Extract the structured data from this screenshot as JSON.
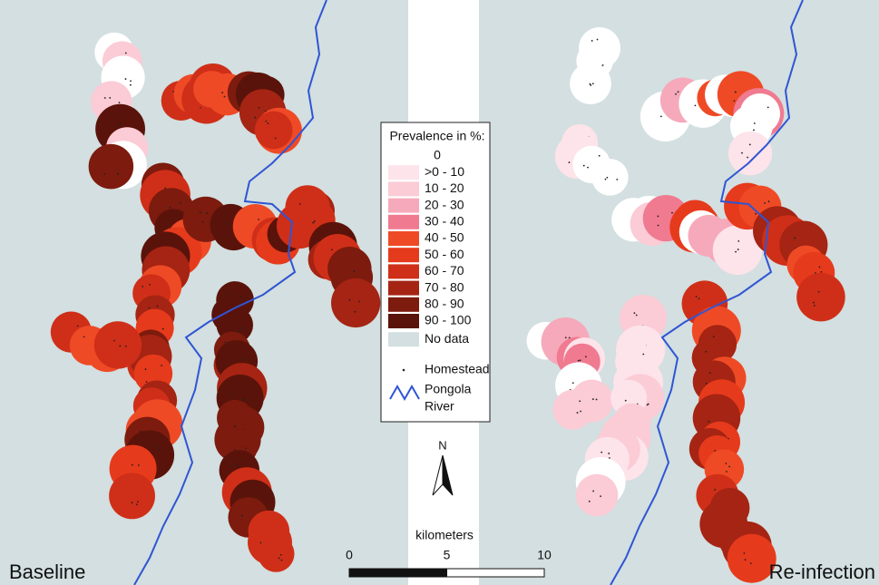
{
  "panels": {
    "left": "Baseline",
    "right": "Re-infection"
  },
  "legend": {
    "title": "Prevalence in %:",
    "items": [
      {
        "label": "0",
        "color": "#ffffff"
      },
      {
        "label": ">0 - 10",
        "color": "#fde3ea"
      },
      {
        "label": "10 - 20",
        "color": "#fbcbd6"
      },
      {
        "label": "20 - 30",
        "color": "#f6a9ba"
      },
      {
        "label": "30 - 40",
        "color": "#f07a90"
      },
      {
        "label": "40 - 50",
        "color": "#ef4a26"
      },
      {
        "label": "50 - 60",
        "color": "#e63a1c"
      },
      {
        "label": "60 - 70",
        "color": "#cf2f18"
      },
      {
        "label": "70 - 80",
        "color": "#a52413"
      },
      {
        "label": "80 - 90",
        "color": "#7c1b0e"
      },
      {
        "label": "90 - 100",
        "color": "#5a130a"
      },
      {
        "label": "No data",
        "color": "#d3dfe0"
      }
    ],
    "homestead": "Homestead",
    "river": [
      "Pongola",
      "River"
    ]
  },
  "north": "N",
  "scale": {
    "unit": "kilometers",
    "ticks": [
      0,
      5,
      10
    ]
  }
}
